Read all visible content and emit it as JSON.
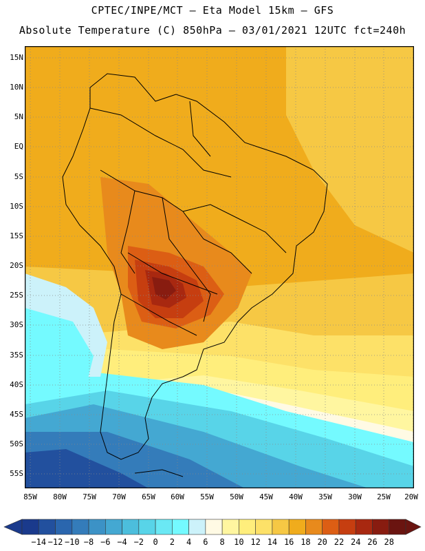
{
  "header": {
    "title_line1": "CPTEC/INPE/MCT –  Eta Model 15km – GFS",
    "title_line2": "Absolute Temperature (C) 850hPa – 03/01/2021 12UTC fct=240h"
  },
  "map": {
    "lat_labels": [
      "15N",
      "10N",
      "5N",
      "EQ",
      "5S",
      "10S",
      "15S",
      "20S",
      "25S",
      "30S",
      "35S",
      "40S",
      "45S",
      "50S",
      "55S"
    ],
    "lon_labels": [
      "85W",
      "80W",
      "75W",
      "70W",
      "65W",
      "60W",
      "55W",
      "50W",
      "45W",
      "40W",
      "35W",
      "30W",
      "25W",
      "20W"
    ]
  },
  "colorbar": {
    "labels": [
      "-14",
      "-12",
      "-10",
      "-8",
      "-6",
      "-4",
      "-2",
      "0",
      "2",
      "4",
      "6",
      "8",
      "10",
      "12",
      "14",
      "16",
      "18",
      "20",
      "22",
      "24",
      "26",
      "28"
    ],
    "colors": [
      "#1a3a8c",
      "#22509e",
      "#2a66ae",
      "#347cba",
      "#3c92c6",
      "#44a8d2",
      "#4cbedc",
      "#58d4e8",
      "#6ae8f4",
      "#74faff",
      "#ccf2fa",
      "#fffae4",
      "#fff6a0",
      "#ffee7c",
      "#fde168",
      "#f6c844",
      "#f0ac1c",
      "#e88a1c",
      "#dc5e14",
      "#c63e10",
      "#a82810",
      "#881c10",
      "#6a1410"
    ]
  }
}
